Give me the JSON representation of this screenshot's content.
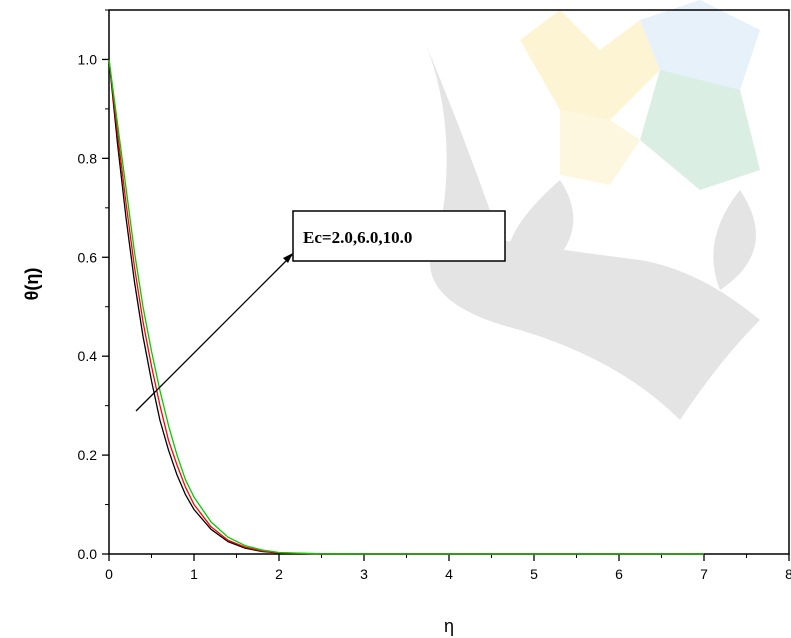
{
  "chart_data": {
    "type": "line",
    "title": "",
    "xlabel": "η",
    "ylabel": "θ(η)",
    "xlim": [
      0,
      8
    ],
    "ylim": [
      0,
      1.1
    ],
    "x_ticks": [
      "0",
      "1",
      "2",
      "3",
      "4",
      "5",
      "6",
      "7",
      "8"
    ],
    "y_ticks": [
      "0.0",
      "0.2",
      "0.4",
      "0.6",
      "0.8",
      "1.0"
    ],
    "grid": false,
    "legend": "none",
    "annotation": "Ec=2.0,6.0,10.0",
    "series": [
      {
        "color": "#000000",
        "x": [
          0,
          0.1,
          0.2,
          0.3,
          0.4,
          0.5,
          0.6,
          0.7,
          0.8,
          0.9,
          1.0,
          1.2,
          1.4,
          1.6,
          1.8,
          2.0,
          2.5,
          3.0,
          4.0,
          5.0,
          6.0,
          7.0
        ],
        "values": [
          1.0,
          0.83,
          0.68,
          0.55,
          0.44,
          0.35,
          0.27,
          0.21,
          0.16,
          0.12,
          0.09,
          0.05,
          0.025,
          0.012,
          0.005,
          0.002,
          0.0,
          0.0,
          0.0,
          0.0,
          0.0,
          0.0
        ]
      },
      {
        "color": "#ff0000",
        "x": [
          0,
          0.1,
          0.2,
          0.3,
          0.4,
          0.5,
          0.6,
          0.7,
          0.8,
          0.9,
          1.0,
          1.2,
          1.4,
          1.6,
          1.8,
          2.0,
          2.5,
          3.0,
          4.0,
          5.0,
          6.0,
          7.0
        ],
        "values": [
          1.0,
          0.85,
          0.71,
          0.58,
          0.47,
          0.38,
          0.3,
          0.23,
          0.18,
          0.135,
          0.1,
          0.055,
          0.028,
          0.014,
          0.006,
          0.0025,
          0.0,
          0.0,
          0.0,
          0.0,
          0.0,
          0.0
        ]
      },
      {
        "color": "#00cc00",
        "x": [
          0,
          0.1,
          0.2,
          0.3,
          0.4,
          0.5,
          0.6,
          0.7,
          0.8,
          0.9,
          1.0,
          1.2,
          1.4,
          1.6,
          1.8,
          2.0,
          2.5,
          3.0,
          4.0,
          5.0,
          6.0,
          7.0
        ],
        "values": [
          1.0,
          0.87,
          0.74,
          0.61,
          0.5,
          0.41,
          0.33,
          0.26,
          0.2,
          0.15,
          0.115,
          0.065,
          0.034,
          0.017,
          0.008,
          0.003,
          0.0005,
          0.0,
          0.0,
          0.0,
          0.0,
          0.0
        ]
      }
    ]
  }
}
